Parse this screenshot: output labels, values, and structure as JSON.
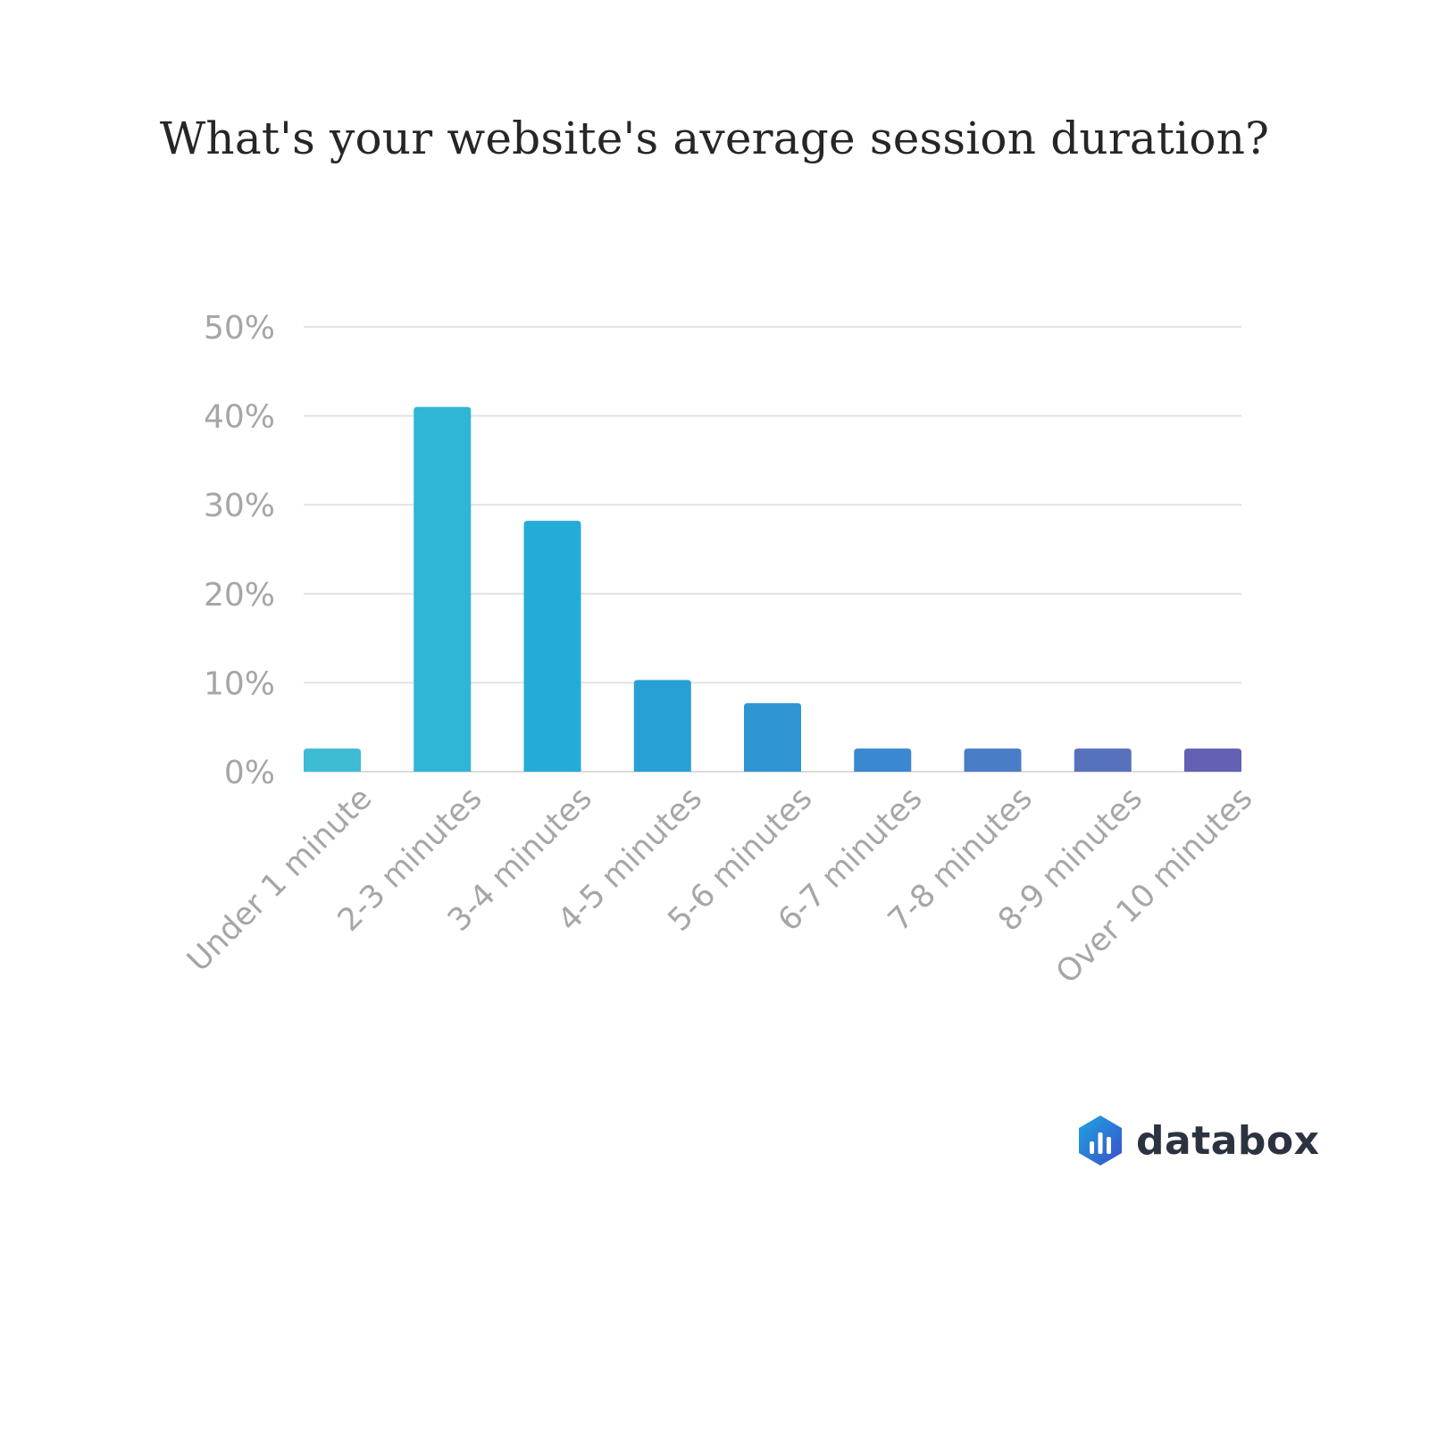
{
  "brand": {
    "name": "databox",
    "colors": [
      "#1f9ae0",
      "#2d5bd0"
    ]
  },
  "chart_data": {
    "type": "bar",
    "title": "What's your website's average session duration?",
    "xlabel": "",
    "ylabel": "",
    "categories": [
      "Under 1 minute",
      "2-3 minutes",
      "3-4 minutes",
      "4-5 minutes",
      "5-6 minutes",
      "6-7 minutes",
      "7-8 minutes",
      "8-9 minutes",
      "Over 10 minutes"
    ],
    "values": [
      2.6,
      41.0,
      28.2,
      10.3,
      7.7,
      2.6,
      2.6,
      2.6,
      2.6
    ],
    "value_unit": "%",
    "ylim": [
      0,
      50
    ],
    "yticks": [
      0,
      10,
      20,
      30,
      40,
      50
    ],
    "ytick_labels": [
      "0%",
      "10%",
      "20%",
      "30%",
      "40%",
      "50%"
    ],
    "grid": true,
    "legend": "none",
    "bar_colors": [
      "#3dbcd4",
      "#2fb5d6",
      "#24acd8",
      "#28a0d6",
      "#3095d3",
      "#3988d0",
      "#4a7cc8",
      "#5672bd",
      "#6261b3"
    ]
  }
}
